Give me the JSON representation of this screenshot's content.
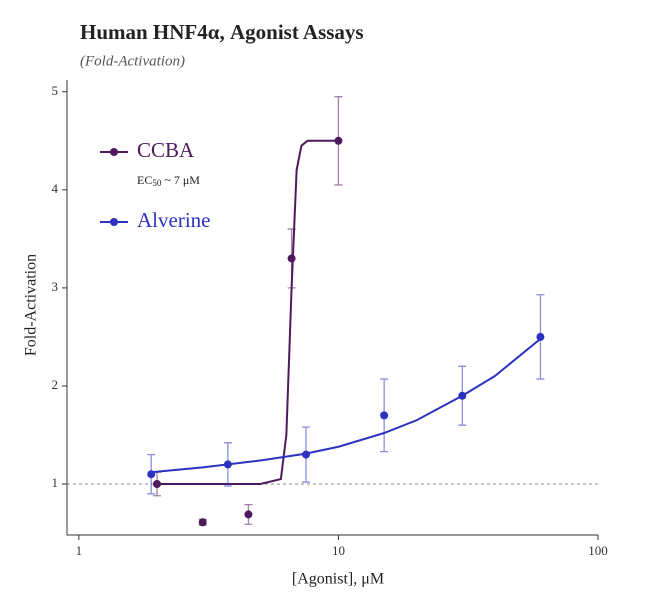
{
  "chart_data": {
    "type": "scatter",
    "title": "Human HNF4α, Agonist Assays",
    "subtitle": "(Fold-Activation)",
    "x_label": "[Agonist], μM",
    "y_label": "Fold-Activation",
    "annotation": [
      "EC",
      "50",
      " ~ 7 μM"
    ],
    "log_x": true,
    "xlim": [
      0.9,
      100
    ],
    "xticks": [
      1,
      10,
      100
    ],
    "ylim": [
      0.48,
      5.12
    ],
    "yticks": [
      1,
      2,
      3,
      4,
      5
    ],
    "reference_line": 1,
    "series": [
      {
        "name": "CCBA",
        "color": "#4e1a5c",
        "x": [
          2,
          3,
          4.5,
          6.6,
          10
        ],
        "values": [
          1.0,
          0.61,
          0.69,
          3.3,
          4.5
        ],
        "errors": [
          0.12,
          0.03,
          0.1,
          0.3,
          0.45
        ],
        "fit_x": [
          2,
          5,
          6,
          6.3,
          6.6,
          6.9,
          7.2,
          7.6,
          10
        ],
        "fit_values": [
          1.0,
          1.0,
          1.05,
          1.5,
          3.0,
          4.2,
          4.45,
          4.5,
          4.5
        ]
      },
      {
        "name": "Alverine",
        "color": "#2b32c2",
        "x": [
          1.9,
          3.75,
          7.5,
          15,
          30,
          60
        ],
        "values": [
          1.1,
          1.2,
          1.3,
          1.7,
          1.9,
          2.5
        ],
        "errors": [
          0.2,
          0.22,
          0.28,
          0.37,
          0.3,
          0.43
        ],
        "fit_x": [
          1.9,
          3,
          5,
          7.5,
          10,
          15,
          20,
          30,
          40,
          60
        ],
        "fit_values": [
          1.12,
          1.17,
          1.24,
          1.31,
          1.38,
          1.52,
          1.65,
          1.9,
          2.1,
          2.48
        ]
      }
    ]
  }
}
